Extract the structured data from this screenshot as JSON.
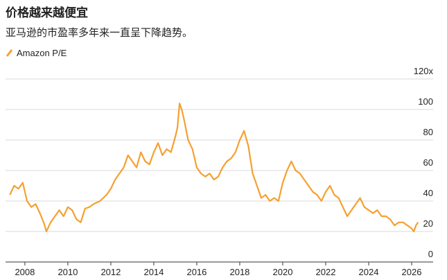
{
  "chart_data": {
    "type": "line",
    "title": "价格越来越便宜",
    "subtitle": "亚马逊的市盈率多年来一直呈下降趋势。",
    "x": [
      2007.3,
      2007.5,
      2007.7,
      2007.9,
      2008.1,
      2008.3,
      2008.5,
      2008.7,
      2008.9,
      2009.0,
      2009.2,
      2009.4,
      2009.6,
      2009.8,
      2010.0,
      2010.2,
      2010.4,
      2010.6,
      2010.8,
      2011.0,
      2011.2,
      2011.5,
      2011.8,
      2012.0,
      2012.2,
      2012.4,
      2012.6,
      2012.8,
      2013.0,
      2013.2,
      2013.4,
      2013.6,
      2013.8,
      2014.0,
      2014.2,
      2014.4,
      2014.6,
      2014.8,
      2015.0,
      2015.1,
      2015.2,
      2015.3,
      2015.4,
      2015.6,
      2015.8,
      2016.0,
      2016.2,
      2016.4,
      2016.6,
      2016.8,
      2017.0,
      2017.2,
      2017.4,
      2017.6,
      2017.8,
      2018.0,
      2018.2,
      2018.4,
      2018.6,
      2018.8,
      2019.0,
      2019.2,
      2019.4,
      2019.6,
      2019.8,
      2020.0,
      2020.2,
      2020.4,
      2020.6,
      2020.8,
      2021.0,
      2021.2,
      2021.4,
      2021.6,
      2021.8,
      2022.0,
      2022.2,
      2022.4,
      2022.6,
      2022.8,
      2023.0,
      2023.2,
      2023.4,
      2023.6,
      2023.8,
      2024.0,
      2024.2,
      2024.4,
      2024.6,
      2024.8,
      2025.0,
      2025.2,
      2025.4,
      2025.6,
      2025.8,
      2026.0,
      2026.1,
      2026.2,
      2026.3
    ],
    "series": [
      {
        "name": "Amazon P/E",
        "color": "#f5a030",
        "values": [
          44,
          50,
          48,
          52,
          40,
          36,
          38,
          32,
          25,
          20,
          26,
          30,
          34,
          30,
          36,
          34,
          28,
          26,
          35,
          36,
          38,
          40,
          44,
          48,
          54,
          58,
          62,
          70,
          66,
          62,
          72,
          66,
          64,
          72,
          78,
          70,
          74,
          72,
          82,
          88,
          104,
          100,
          94,
          80,
          74,
          62,
          58,
          56,
          58,
          54,
          56,
          62,
          66,
          68,
          72,
          80,
          86,
          76,
          58,
          50,
          42,
          44,
          40,
          42,
          40,
          52,
          60,
          66,
          60,
          58,
          54,
          50,
          46,
          44,
          40,
          46,
          50,
          44,
          42,
          36,
          30,
          34,
          38,
          42,
          36,
          34,
          32,
          34,
          30,
          30,
          28,
          24,
          26,
          26,
          24,
          22,
          20,
          24,
          26
        ]
      }
    ],
    "xlim": [
      2007.1,
      2027.0
    ],
    "xticks": [
      2008,
      2010,
      2012,
      2014,
      2016,
      2018,
      2020,
      2022,
      2024,
      2026
    ],
    "ylim": [
      0,
      120
    ],
    "yticks": [
      0,
      20,
      40,
      60,
      80,
      100,
      {
        "value": 120,
        "label": "120x"
      }
    ],
    "grid": true
  }
}
